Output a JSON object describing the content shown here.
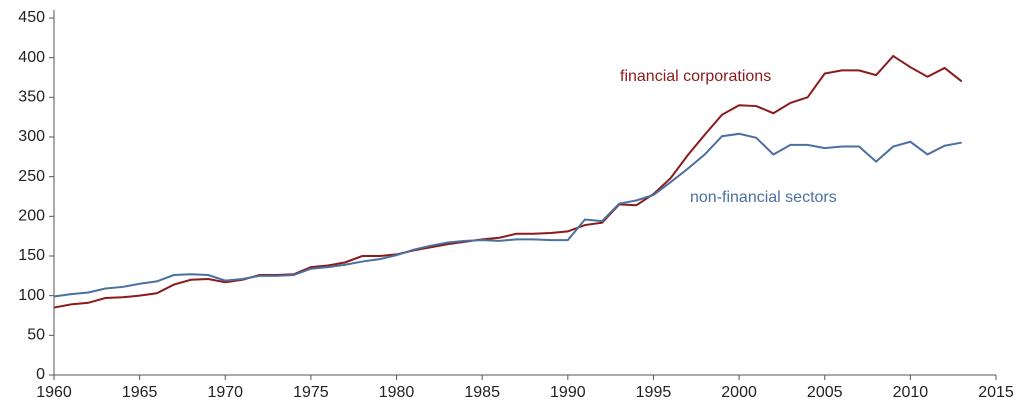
{
  "chart_data": {
    "type": "line",
    "x": [
      1960,
      1961,
      1962,
      1963,
      1964,
      1965,
      1966,
      1967,
      1968,
      1969,
      1970,
      1971,
      1972,
      1973,
      1974,
      1975,
      1976,
      1977,
      1978,
      1979,
      1980,
      1981,
      1982,
      1983,
      1984,
      1985,
      1986,
      1987,
      1988,
      1989,
      1990,
      1991,
      1992,
      1993,
      1994,
      1995,
      1996,
      1997,
      1998,
      1999,
      2000,
      2001,
      2002,
      2003,
      2004,
      2005,
      2006,
      2007,
      2008,
      2009,
      2010,
      2011,
      2012,
      2013
    ],
    "series": [
      {
        "name": "financial corporations",
        "color": "#8b1a1a",
        "values": [
          85,
          89,
          91,
          97,
          98,
          100,
          103,
          114,
          120,
          121,
          117,
          120,
          126,
          126,
          127,
          136,
          138,
          142,
          150,
          150,
          152,
          157,
          161,
          165,
          168,
          171,
          173,
          178,
          178,
          179,
          181,
          189,
          192,
          215,
          214,
          228,
          248,
          277,
          303,
          328,
          340,
          339,
          330,
          343,
          350,
          380,
          384,
          384,
          378,
          402,
          388,
          376,
          387,
          370
        ]
      },
      {
        "name": "non-financial sectors",
        "color": "#4a70a2",
        "values": [
          99,
          102,
          104,
          109,
          111,
          115,
          118,
          126,
          127,
          126,
          119,
          121,
          125,
          125,
          126,
          134,
          136,
          139,
          143,
          146,
          151,
          158,
          163,
          167,
          169,
          170,
          169,
          171,
          171,
          170,
          170,
          196,
          194,
          216,
          220,
          227,
          243,
          260,
          278,
          301,
          304,
          299,
          278,
          290,
          290,
          286,
          288,
          288,
          269,
          288,
          294,
          278,
          289,
          293
        ]
      }
    ],
    "xlim": [
      1960,
      2015
    ],
    "xticks": [
      1960,
      1965,
      1970,
      1975,
      1980,
      1985,
      1990,
      1995,
      2000,
      2005,
      2010,
      2015
    ],
    "ylim": [
      0,
      450
    ],
    "yticks": [
      0,
      50,
      100,
      150,
      200,
      250,
      300,
      350,
      400,
      450
    ],
    "grid": false
  }
}
